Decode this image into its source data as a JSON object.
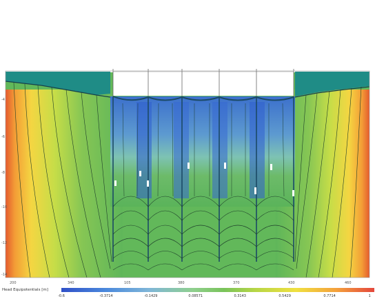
{
  "legend": {
    "title": "Head Equipotentials [m]",
    "ticks": [
      "-0.6",
      "-0.3714",
      "-0.1429",
      "0.08571",
      "0.3143",
      "0.5429",
      "0.7714",
      "1"
    ]
  },
  "x_axis_ticks": [
    "200",
    "340",
    "105",
    "380",
    "370",
    "430",
    "460"
  ],
  "y_axis_ticks": [
    "-4",
    "-6",
    "-8",
    "-10",
    "-12",
    "-14"
  ],
  "colors": {
    "ground_cap": "#1f8c86",
    "sheet_pile": "#1b4a66",
    "low_head": "#3b6fd4",
    "high_head": "#e05530"
  }
}
